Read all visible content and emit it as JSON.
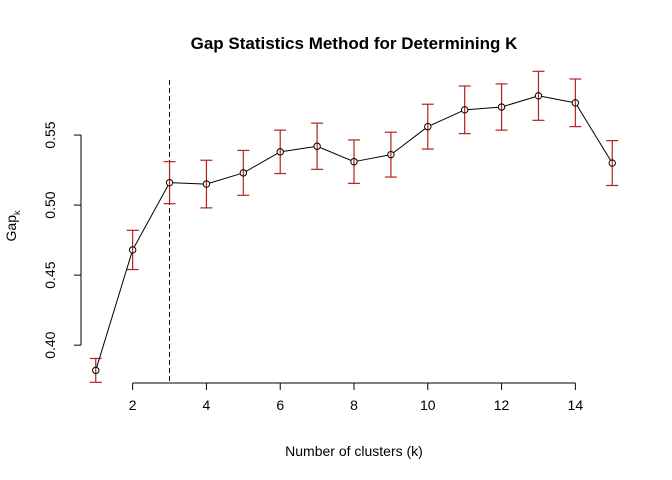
{
  "chart_data": {
    "type": "scatter",
    "title": "Gap Statistics Method for Determining K",
    "xlabel": "Number of clusters (k)",
    "ylabel": {
      "main": "Gap",
      "subscript": "k"
    },
    "xlim": [
      0.6,
      15.4
    ],
    "ylim": [
      0.373,
      0.59
    ],
    "xticks": [
      2,
      4,
      6,
      8,
      10,
      12,
      14
    ],
    "xtick_labels": [
      "2",
      "4",
      "6",
      "8",
      "10",
      "12",
      "14"
    ],
    "yticks": [
      0.4,
      0.45,
      0.5,
      0.55
    ],
    "ytick_labels": [
      "0.40",
      "0.45",
      "0.50",
      "0.55"
    ],
    "x": [
      1,
      2,
      3,
      4,
      5,
      6,
      7,
      8,
      9,
      10,
      11,
      12,
      13,
      14,
      15
    ],
    "gap": [
      0.382,
      0.468,
      0.516,
      0.515,
      0.523,
      0.538,
      0.542,
      0.531,
      0.536,
      0.556,
      0.568,
      0.57,
      0.578,
      0.573,
      0.53
    ],
    "se": [
      0.0085,
      0.014,
      0.015,
      0.017,
      0.016,
      0.0155,
      0.0165,
      0.0155,
      0.016,
      0.016,
      0.017,
      0.0165,
      0.0175,
      0.017,
      0.016
    ],
    "optimal_k": 3,
    "grid": false,
    "colors": {
      "points_line": "#000000",
      "error_bars": "#b22222",
      "vline": "#000000"
    }
  }
}
